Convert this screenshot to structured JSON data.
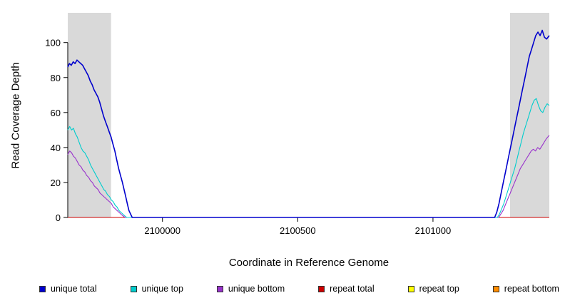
{
  "chart_data": {
    "type": "line",
    "title": "",
    "xlabel": "Coordinate in Reference Genome",
    "ylabel": "Read Coverage Depth",
    "xlim": [
      2099650,
      2101430
    ],
    "ylim": [
      0,
      117
    ],
    "x_ticks": [
      2100000,
      2100500,
      2101000
    ],
    "y_ticks": [
      0,
      20,
      40,
      60,
      80,
      100
    ],
    "grid": false,
    "legend_position": "bottom",
    "shade_color": "#d9d9d9",
    "shaded_regions": [
      {
        "x0": 2099650,
        "x1": 2099810
      },
      {
        "x0": 2101285,
        "x1": 2101430
      }
    ],
    "series": [
      {
        "name": "unique total",
        "color": "#0000cd",
        "points": [
          [
            2099650,
            86
          ],
          [
            2099656,
            88
          ],
          [
            2099663,
            87
          ],
          [
            2099670,
            89
          ],
          [
            2099677,
            88
          ],
          [
            2099684,
            90
          ],
          [
            2099691,
            89
          ],
          [
            2099698,
            88
          ],
          [
            2099705,
            87
          ],
          [
            2099712,
            85
          ],
          [
            2099719,
            83
          ],
          [
            2099726,
            81
          ],
          [
            2099733,
            78
          ],
          [
            2099740,
            76
          ],
          [
            2099747,
            73
          ],
          [
            2099754,
            71
          ],
          [
            2099761,
            69
          ],
          [
            2099768,
            66
          ],
          [
            2099775,
            62
          ],
          [
            2099782,
            58
          ],
          [
            2099789,
            55
          ],
          [
            2099796,
            52
          ],
          [
            2099803,
            49
          ],
          [
            2099810,
            46
          ],
          [
            2099817,
            42
          ],
          [
            2099824,
            38
          ],
          [
            2099831,
            33
          ],
          [
            2099838,
            28
          ],
          [
            2099845,
            24
          ],
          [
            2099852,
            20
          ],
          [
            2099858,
            16
          ],
          [
            2099864,
            12
          ],
          [
            2099870,
            8
          ],
          [
            2099876,
            4
          ],
          [
            2099882,
            2
          ],
          [
            2099888,
            0
          ],
          [
            2101228,
            0
          ],
          [
            2101236,
            3
          ],
          [
            2101244,
            8
          ],
          [
            2101252,
            14
          ],
          [
            2101260,
            20
          ],
          [
            2101268,
            26
          ],
          [
            2101276,
            32
          ],
          [
            2101284,
            38
          ],
          [
            2101292,
            44
          ],
          [
            2101300,
            50
          ],
          [
            2101308,
            56
          ],
          [
            2101316,
            62
          ],
          [
            2101324,
            68
          ],
          [
            2101332,
            74
          ],
          [
            2101340,
            80
          ],
          [
            2101348,
            86
          ],
          [
            2101356,
            92
          ],
          [
            2101364,
            96
          ],
          [
            2101372,
            100
          ],
          [
            2101380,
            104
          ],
          [
            2101388,
            106
          ],
          [
            2101396,
            104
          ],
          [
            2101404,
            107
          ],
          [
            2101412,
            103
          ],
          [
            2101420,
            102
          ],
          [
            2101430,
            104
          ]
        ]
      },
      {
        "name": "unique top",
        "color": "#00cdcd",
        "points": [
          [
            2099650,
            50
          ],
          [
            2099657,
            52
          ],
          [
            2099664,
            50
          ],
          [
            2099671,
            51
          ],
          [
            2099678,
            48
          ],
          [
            2099685,
            46
          ],
          [
            2099692,
            43
          ],
          [
            2099699,
            40
          ],
          [
            2099706,
            38
          ],
          [
            2099713,
            37
          ],
          [
            2099720,
            35
          ],
          [
            2099727,
            33
          ],
          [
            2099734,
            30
          ],
          [
            2099741,
            28
          ],
          [
            2099748,
            26
          ],
          [
            2099755,
            24
          ],
          [
            2099762,
            22
          ],
          [
            2099769,
            20
          ],
          [
            2099776,
            18
          ],
          [
            2099783,
            16
          ],
          [
            2099790,
            15
          ],
          [
            2099797,
            13
          ],
          [
            2099804,
            12
          ],
          [
            2099811,
            10
          ],
          [
            2099818,
            9
          ],
          [
            2099825,
            7
          ],
          [
            2099832,
            6
          ],
          [
            2099839,
            4
          ],
          [
            2099846,
            3
          ],
          [
            2099853,
            2
          ],
          [
            2099860,
            1
          ],
          [
            2099868,
            0
          ],
          [
            2101238,
            0
          ],
          [
            2101246,
            2
          ],
          [
            2101254,
            5
          ],
          [
            2101262,
            8
          ],
          [
            2101270,
            12
          ],
          [
            2101278,
            16
          ],
          [
            2101286,
            20
          ],
          [
            2101294,
            24
          ],
          [
            2101302,
            28
          ],
          [
            2101310,
            33
          ],
          [
            2101318,
            38
          ],
          [
            2101326,
            43
          ],
          [
            2101334,
            48
          ],
          [
            2101342,
            52
          ],
          [
            2101350,
            56
          ],
          [
            2101358,
            60
          ],
          [
            2101366,
            64
          ],
          [
            2101374,
            67
          ],
          [
            2101382,
            68
          ],
          [
            2101390,
            64
          ],
          [
            2101398,
            61
          ],
          [
            2101406,
            60
          ],
          [
            2101414,
            63
          ],
          [
            2101422,
            65
          ],
          [
            2101430,
            64
          ]
        ]
      },
      {
        "name": "unique bottom",
        "color": "#9932cc",
        "points": [
          [
            2099650,
            36
          ],
          [
            2099657,
            38
          ],
          [
            2099664,
            37
          ],
          [
            2099671,
            35
          ],
          [
            2099678,
            34
          ],
          [
            2099685,
            32
          ],
          [
            2099692,
            30
          ],
          [
            2099699,
            29
          ],
          [
            2099706,
            27
          ],
          [
            2099713,
            26
          ],
          [
            2099720,
            24
          ],
          [
            2099727,
            23
          ],
          [
            2099734,
            21
          ],
          [
            2099741,
            20
          ],
          [
            2099748,
            18
          ],
          [
            2099755,
            17
          ],
          [
            2099762,
            16
          ],
          [
            2099769,
            14
          ],
          [
            2099776,
            13
          ],
          [
            2099783,
            12
          ],
          [
            2099790,
            11
          ],
          [
            2099797,
            10
          ],
          [
            2099804,
            9
          ],
          [
            2099811,
            8
          ],
          [
            2099818,
            6
          ],
          [
            2099825,
            5
          ],
          [
            2099832,
            4
          ],
          [
            2099839,
            3
          ],
          [
            2099846,
            2
          ],
          [
            2099853,
            1
          ],
          [
            2099862,
            0
          ],
          [
            2101243,
            0
          ],
          [
            2101251,
            2
          ],
          [
            2101259,
            4
          ],
          [
            2101267,
            7
          ],
          [
            2101275,
            10
          ],
          [
            2101283,
            13
          ],
          [
            2101291,
            16
          ],
          [
            2101299,
            19
          ],
          [
            2101307,
            22
          ],
          [
            2101315,
            25
          ],
          [
            2101323,
            28
          ],
          [
            2101331,
            30
          ],
          [
            2101339,
            32
          ],
          [
            2101347,
            34
          ],
          [
            2101355,
            36
          ],
          [
            2101363,
            38
          ],
          [
            2101371,
            39
          ],
          [
            2101379,
            38
          ],
          [
            2101387,
            40
          ],
          [
            2101395,
            39
          ],
          [
            2101403,
            41
          ],
          [
            2101411,
            43
          ],
          [
            2101419,
            45
          ],
          [
            2101430,
            47
          ]
        ]
      },
      {
        "name": "repeat total",
        "color": "#cc0000",
        "points": [
          [
            2099650,
            0
          ],
          [
            2101430,
            0
          ]
        ]
      },
      {
        "name": "repeat top",
        "color": "#ffff00",
        "points": [
          [
            2099650,
            0
          ],
          [
            2101430,
            0
          ]
        ]
      },
      {
        "name": "repeat bottom",
        "color": "#ff8c00",
        "points": [
          [
            2099650,
            0
          ],
          [
            2101430,
            0
          ]
        ]
      }
    ]
  }
}
